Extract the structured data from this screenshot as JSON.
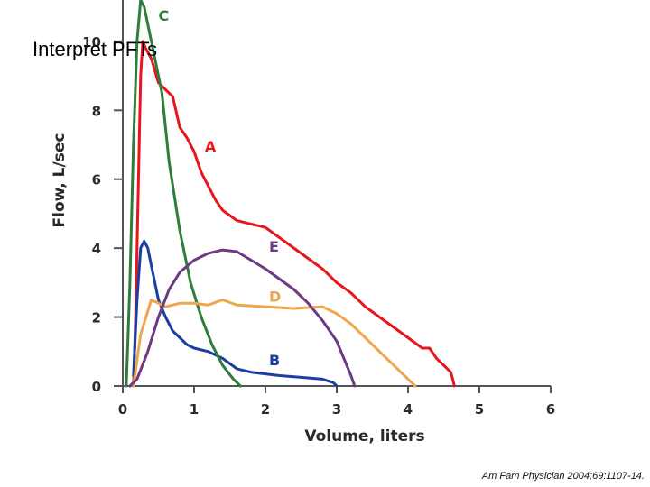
{
  "slide": {
    "title": "Interpret PFTs",
    "citation": "Am Fam Physician 2004;69:1107-14."
  },
  "chart_data": {
    "type": "line",
    "title": "",
    "xlabel": "Volume, liters",
    "ylabel": "Flow, L/sec",
    "xlim": [
      0,
      6
    ],
    "ylim": [
      0,
      11.2
    ],
    "x_ticks": [
      0,
      1,
      2,
      3,
      4,
      5,
      6
    ],
    "y_ticks": [
      0,
      2,
      4,
      6,
      8,
      10
    ],
    "grid": false,
    "legend": "none",
    "series": [
      {
        "name": "A",
        "color": "#e8161b",
        "label_at": [
          1.15,
          6.8
        ],
        "points": [
          [
            0.15,
            0
          ],
          [
            0.18,
            2
          ],
          [
            0.22,
            6
          ],
          [
            0.25,
            9
          ],
          [
            0.28,
            10
          ],
          [
            0.32,
            9.8
          ],
          [
            0.4,
            9.5
          ],
          [
            0.5,
            8.8
          ],
          [
            0.6,
            8.6
          ],
          [
            0.7,
            8.4
          ],
          [
            0.8,
            7.5
          ],
          [
            0.9,
            7.2
          ],
          [
            1.0,
            6.8
          ],
          [
            1.1,
            6.2
          ],
          [
            1.2,
            5.8
          ],
          [
            1.3,
            5.4
          ],
          [
            1.4,
            5.1
          ],
          [
            1.6,
            4.8
          ],
          [
            1.8,
            4.7
          ],
          [
            2.0,
            4.6
          ],
          [
            2.2,
            4.3
          ],
          [
            2.4,
            4.0
          ],
          [
            2.6,
            3.7
          ],
          [
            2.8,
            3.4
          ],
          [
            3.0,
            3.0
          ],
          [
            3.2,
            2.7
          ],
          [
            3.4,
            2.3
          ],
          [
            3.6,
            2.0
          ],
          [
            3.8,
            1.7
          ],
          [
            4.0,
            1.4
          ],
          [
            4.2,
            1.1
          ],
          [
            4.3,
            1.1
          ],
          [
            4.4,
            0.8
          ],
          [
            4.5,
            0.6
          ],
          [
            4.6,
            0.4
          ],
          [
            4.65,
            0
          ]
        ]
      },
      {
        "name": "B",
        "color": "#1a3fa0",
        "label_at": [
          2.05,
          0.6
        ],
        "points": [
          [
            0.15,
            0.3
          ],
          [
            0.2,
            2.5
          ],
          [
            0.25,
            4.0
          ],
          [
            0.3,
            4.2
          ],
          [
            0.35,
            4.0
          ],
          [
            0.4,
            3.5
          ],
          [
            0.5,
            2.5
          ],
          [
            0.6,
            2.0
          ],
          [
            0.7,
            1.6
          ],
          [
            0.8,
            1.4
          ],
          [
            0.9,
            1.2
          ],
          [
            1.0,
            1.1
          ],
          [
            1.2,
            1.0
          ],
          [
            1.4,
            0.8
          ],
          [
            1.6,
            0.5
          ],
          [
            1.8,
            0.4
          ],
          [
            2.0,
            0.35
          ],
          [
            2.2,
            0.3
          ],
          [
            2.5,
            0.25
          ],
          [
            2.8,
            0.2
          ],
          [
            2.95,
            0.1
          ],
          [
            3.0,
            0
          ]
        ]
      },
      {
        "name": "C",
        "color": "#2e7d3a",
        "label_at": [
          0.5,
          10.6
        ],
        "points": [
          [
            0.05,
            0
          ],
          [
            0.1,
            3
          ],
          [
            0.15,
            7
          ],
          [
            0.2,
            10
          ],
          [
            0.25,
            11.2
          ],
          [
            0.3,
            11.0
          ],
          [
            0.35,
            10.5
          ],
          [
            0.45,
            9.5
          ],
          [
            0.55,
            8.5
          ],
          [
            0.65,
            6.5
          ],
          [
            0.8,
            4.5
          ],
          [
            0.95,
            3
          ],
          [
            1.1,
            2
          ],
          [
            1.25,
            1.2
          ],
          [
            1.4,
            0.6
          ],
          [
            1.55,
            0.2
          ],
          [
            1.65,
            0
          ]
        ]
      },
      {
        "name": "D",
        "color": "#f0a64a",
        "label_at": [
          2.05,
          2.45
        ],
        "points": [
          [
            0.15,
            0
          ],
          [
            0.25,
            1.5
          ],
          [
            0.4,
            2.5
          ],
          [
            0.6,
            2.3
          ],
          [
            0.8,
            2.4
          ],
          [
            1.0,
            2.4
          ],
          [
            1.2,
            2.35
          ],
          [
            1.4,
            2.5
          ],
          [
            1.6,
            2.35
          ],
          [
            2.0,
            2.3
          ],
          [
            2.4,
            2.25
          ],
          [
            2.8,
            2.3
          ],
          [
            3.0,
            2.1
          ],
          [
            3.2,
            1.8
          ],
          [
            3.4,
            1.4
          ],
          [
            3.6,
            1.0
          ],
          [
            3.8,
            0.6
          ],
          [
            4.0,
            0.2
          ],
          [
            4.1,
            0
          ]
        ]
      },
      {
        "name": "E",
        "color": "#6b3a82",
        "label_at": [
          2.05,
          3.9
        ],
        "points": [
          [
            0.1,
            0
          ],
          [
            0.2,
            0.2
          ],
          [
            0.35,
            1.0
          ],
          [
            0.5,
            2.0
          ],
          [
            0.65,
            2.8
          ],
          [
            0.8,
            3.3
          ],
          [
            1.0,
            3.65
          ],
          [
            1.2,
            3.85
          ],
          [
            1.4,
            3.95
          ],
          [
            1.6,
            3.9
          ],
          [
            1.8,
            3.65
          ],
          [
            2.0,
            3.4
          ],
          [
            2.2,
            3.1
          ],
          [
            2.4,
            2.8
          ],
          [
            2.6,
            2.4
          ],
          [
            2.8,
            1.9
          ],
          [
            3.0,
            1.3
          ],
          [
            3.1,
            0.8
          ],
          [
            3.2,
            0.3
          ],
          [
            3.25,
            0
          ]
        ]
      }
    ]
  }
}
